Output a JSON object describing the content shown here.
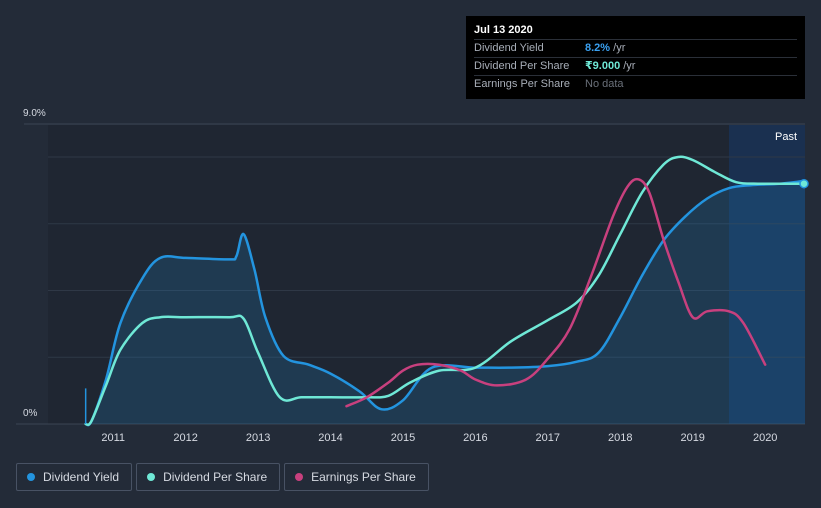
{
  "tooltip": {
    "date": "Jul 13 2020",
    "rows": [
      {
        "label": "Dividend Yield",
        "value": "8.2%",
        "unit": " /yr"
      },
      {
        "label": "Dividend Per Share",
        "value": "₹9.000",
        "unit": " /yr"
      },
      {
        "label": "Earnings Per Share",
        "value": "No data",
        "unit": ""
      }
    ]
  },
  "legend": [
    {
      "label": "Dividend Yield",
      "color": "#2394df"
    },
    {
      "label": "Dividend Per Share",
      "color": "#6fe8d6"
    },
    {
      "label": "Earnings Per Share",
      "color": "#c8407e"
    }
  ],
  "chart_data": {
    "type": "line",
    "ylabels": [
      "9.0%",
      "0%"
    ],
    "xticks": [
      "2011",
      "2012",
      "2013",
      "2014",
      "2015",
      "2016",
      "2017",
      "2018",
      "2019",
      "2020"
    ],
    "past_label": "Past",
    "xlim": [
      2010.1,
      2020.55
    ],
    "ylim": [
      0,
      9.0
    ],
    "series": [
      {
        "name": "Dividend Yield",
        "color": "#2394df",
        "filled": true,
        "x": [
          2010.62,
          2010.7,
          2010.9,
          2011.1,
          2011.4,
          2011.65,
          2012.0,
          2012.6,
          2012.7,
          2012.8,
          2012.95,
          2013.1,
          2013.35,
          2013.7,
          2014.0,
          2014.4,
          2014.7,
          2015.0,
          2015.4,
          2016.0,
          2016.5,
          2017.0,
          2017.4,
          2017.7,
          2018.0,
          2018.3,
          2018.6,
          2018.9,
          2019.2,
          2019.5,
          2019.8,
          2020.2,
          2020.55
        ],
        "y": [
          0.0,
          0.1,
          1.5,
          3.4,
          4.9,
          5.6,
          5.6,
          5.55,
          5.65,
          6.4,
          5.2,
          3.6,
          2.3,
          2.0,
          1.7,
          1.1,
          0.5,
          0.8,
          1.9,
          1.9,
          1.9,
          1.95,
          2.1,
          2.4,
          3.6,
          5.0,
          6.2,
          7.0,
          7.6,
          7.95,
          8.05,
          8.1,
          8.2
        ]
      },
      {
        "name": "Dividend Per Share",
        "color": "#6fe8d6",
        "filled": false,
        "x": [
          2010.62,
          2010.7,
          2010.9,
          2011.1,
          2011.4,
          2011.65,
          2012.0,
          2012.6,
          2012.8,
          2013.0,
          2013.3,
          2013.6,
          2014.0,
          2014.5,
          2014.8,
          2015.1,
          2015.5,
          2016.0,
          2016.5,
          2017.0,
          2017.4,
          2017.7,
          2018.0,
          2018.3,
          2018.6,
          2018.8,
          2019.0,
          2019.3,
          2019.6,
          2019.9,
          2020.2,
          2020.55
        ],
        "y": [
          0.0,
          0.1,
          1.3,
          2.5,
          3.4,
          3.6,
          3.6,
          3.6,
          3.55,
          2.4,
          0.9,
          0.9,
          0.9,
          0.9,
          0.95,
          1.4,
          1.8,
          1.9,
          2.8,
          3.5,
          4.1,
          5.0,
          6.4,
          7.8,
          8.75,
          9.0,
          8.9,
          8.5,
          8.15,
          8.1,
          8.1,
          8.1
        ]
      },
      {
        "name": "Earnings Per Share",
        "color": "#c8407e",
        "filled": false,
        "x": [
          2014.22,
          2014.5,
          2014.8,
          2015.0,
          2015.2,
          2015.5,
          2015.8,
          2016.0,
          2016.3,
          2016.7,
          2017.0,
          2017.3,
          2017.6,
          2017.9,
          2018.1,
          2018.25,
          2018.4,
          2018.6,
          2018.8,
          2019.0,
          2019.2,
          2019.5,
          2019.7,
          2020.0
        ],
        "y": [
          0.6,
          0.9,
          1.4,
          1.8,
          2.0,
          2.0,
          1.8,
          1.5,
          1.3,
          1.5,
          2.2,
          3.2,
          5.0,
          7.0,
          8.0,
          8.25,
          7.8,
          6.2,
          4.8,
          3.6,
          3.8,
          3.8,
          3.4,
          2.0
        ]
      }
    ]
  }
}
